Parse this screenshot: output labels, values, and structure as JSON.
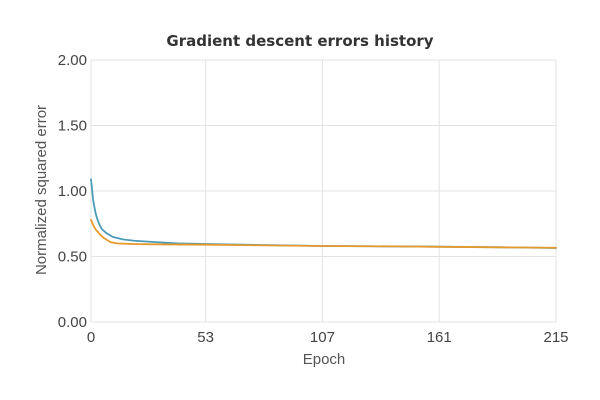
{
  "chart_data": {
    "type": "line",
    "title": "Gradient descent errors history",
    "xlabel": "Epoch",
    "ylabel": "Normalized squared error",
    "xlim": [
      0,
      215
    ],
    "ylim": [
      0,
      2
    ],
    "xticks": [
      0,
      53,
      107,
      161,
      215
    ],
    "yticks": [
      "0.00",
      "0.50",
      "1.00",
      "1.50",
      "2.00"
    ],
    "grid": true,
    "legend": "none",
    "series": [
      {
        "color": "#4a9bb8",
        "points": [
          [
            0,
            1.09
          ],
          [
            1,
            0.93
          ],
          [
            2,
            0.84
          ],
          [
            3,
            0.78
          ],
          [
            4,
            0.74
          ],
          [
            5,
            0.71
          ],
          [
            7,
            0.68
          ],
          [
            10,
            0.65
          ],
          [
            15,
            0.63
          ],
          [
            20,
            0.62
          ],
          [
            30,
            0.61
          ],
          [
            40,
            0.6
          ],
          [
            53,
            0.595
          ],
          [
            70,
            0.59
          ],
          [
            90,
            0.585
          ],
          [
            107,
            0.58
          ],
          [
            130,
            0.578
          ],
          [
            161,
            0.575
          ],
          [
            190,
            0.57
          ],
          [
            215,
            0.565
          ]
        ]
      },
      {
        "color": "#e69a2e",
        "points": [
          [
            0,
            0.78
          ],
          [
            1,
            0.74
          ],
          [
            2,
            0.71
          ],
          [
            3,
            0.69
          ],
          [
            4,
            0.67
          ],
          [
            6,
            0.64
          ],
          [
            9,
            0.61
          ],
          [
            12,
            0.6
          ],
          [
            20,
            0.595
          ],
          [
            35,
            0.592
          ],
          [
            53,
            0.59
          ],
          [
            80,
            0.585
          ],
          [
            107,
            0.58
          ],
          [
            140,
            0.577
          ],
          [
            161,
            0.574
          ],
          [
            190,
            0.57
          ],
          [
            215,
            0.567
          ]
        ]
      }
    ]
  }
}
